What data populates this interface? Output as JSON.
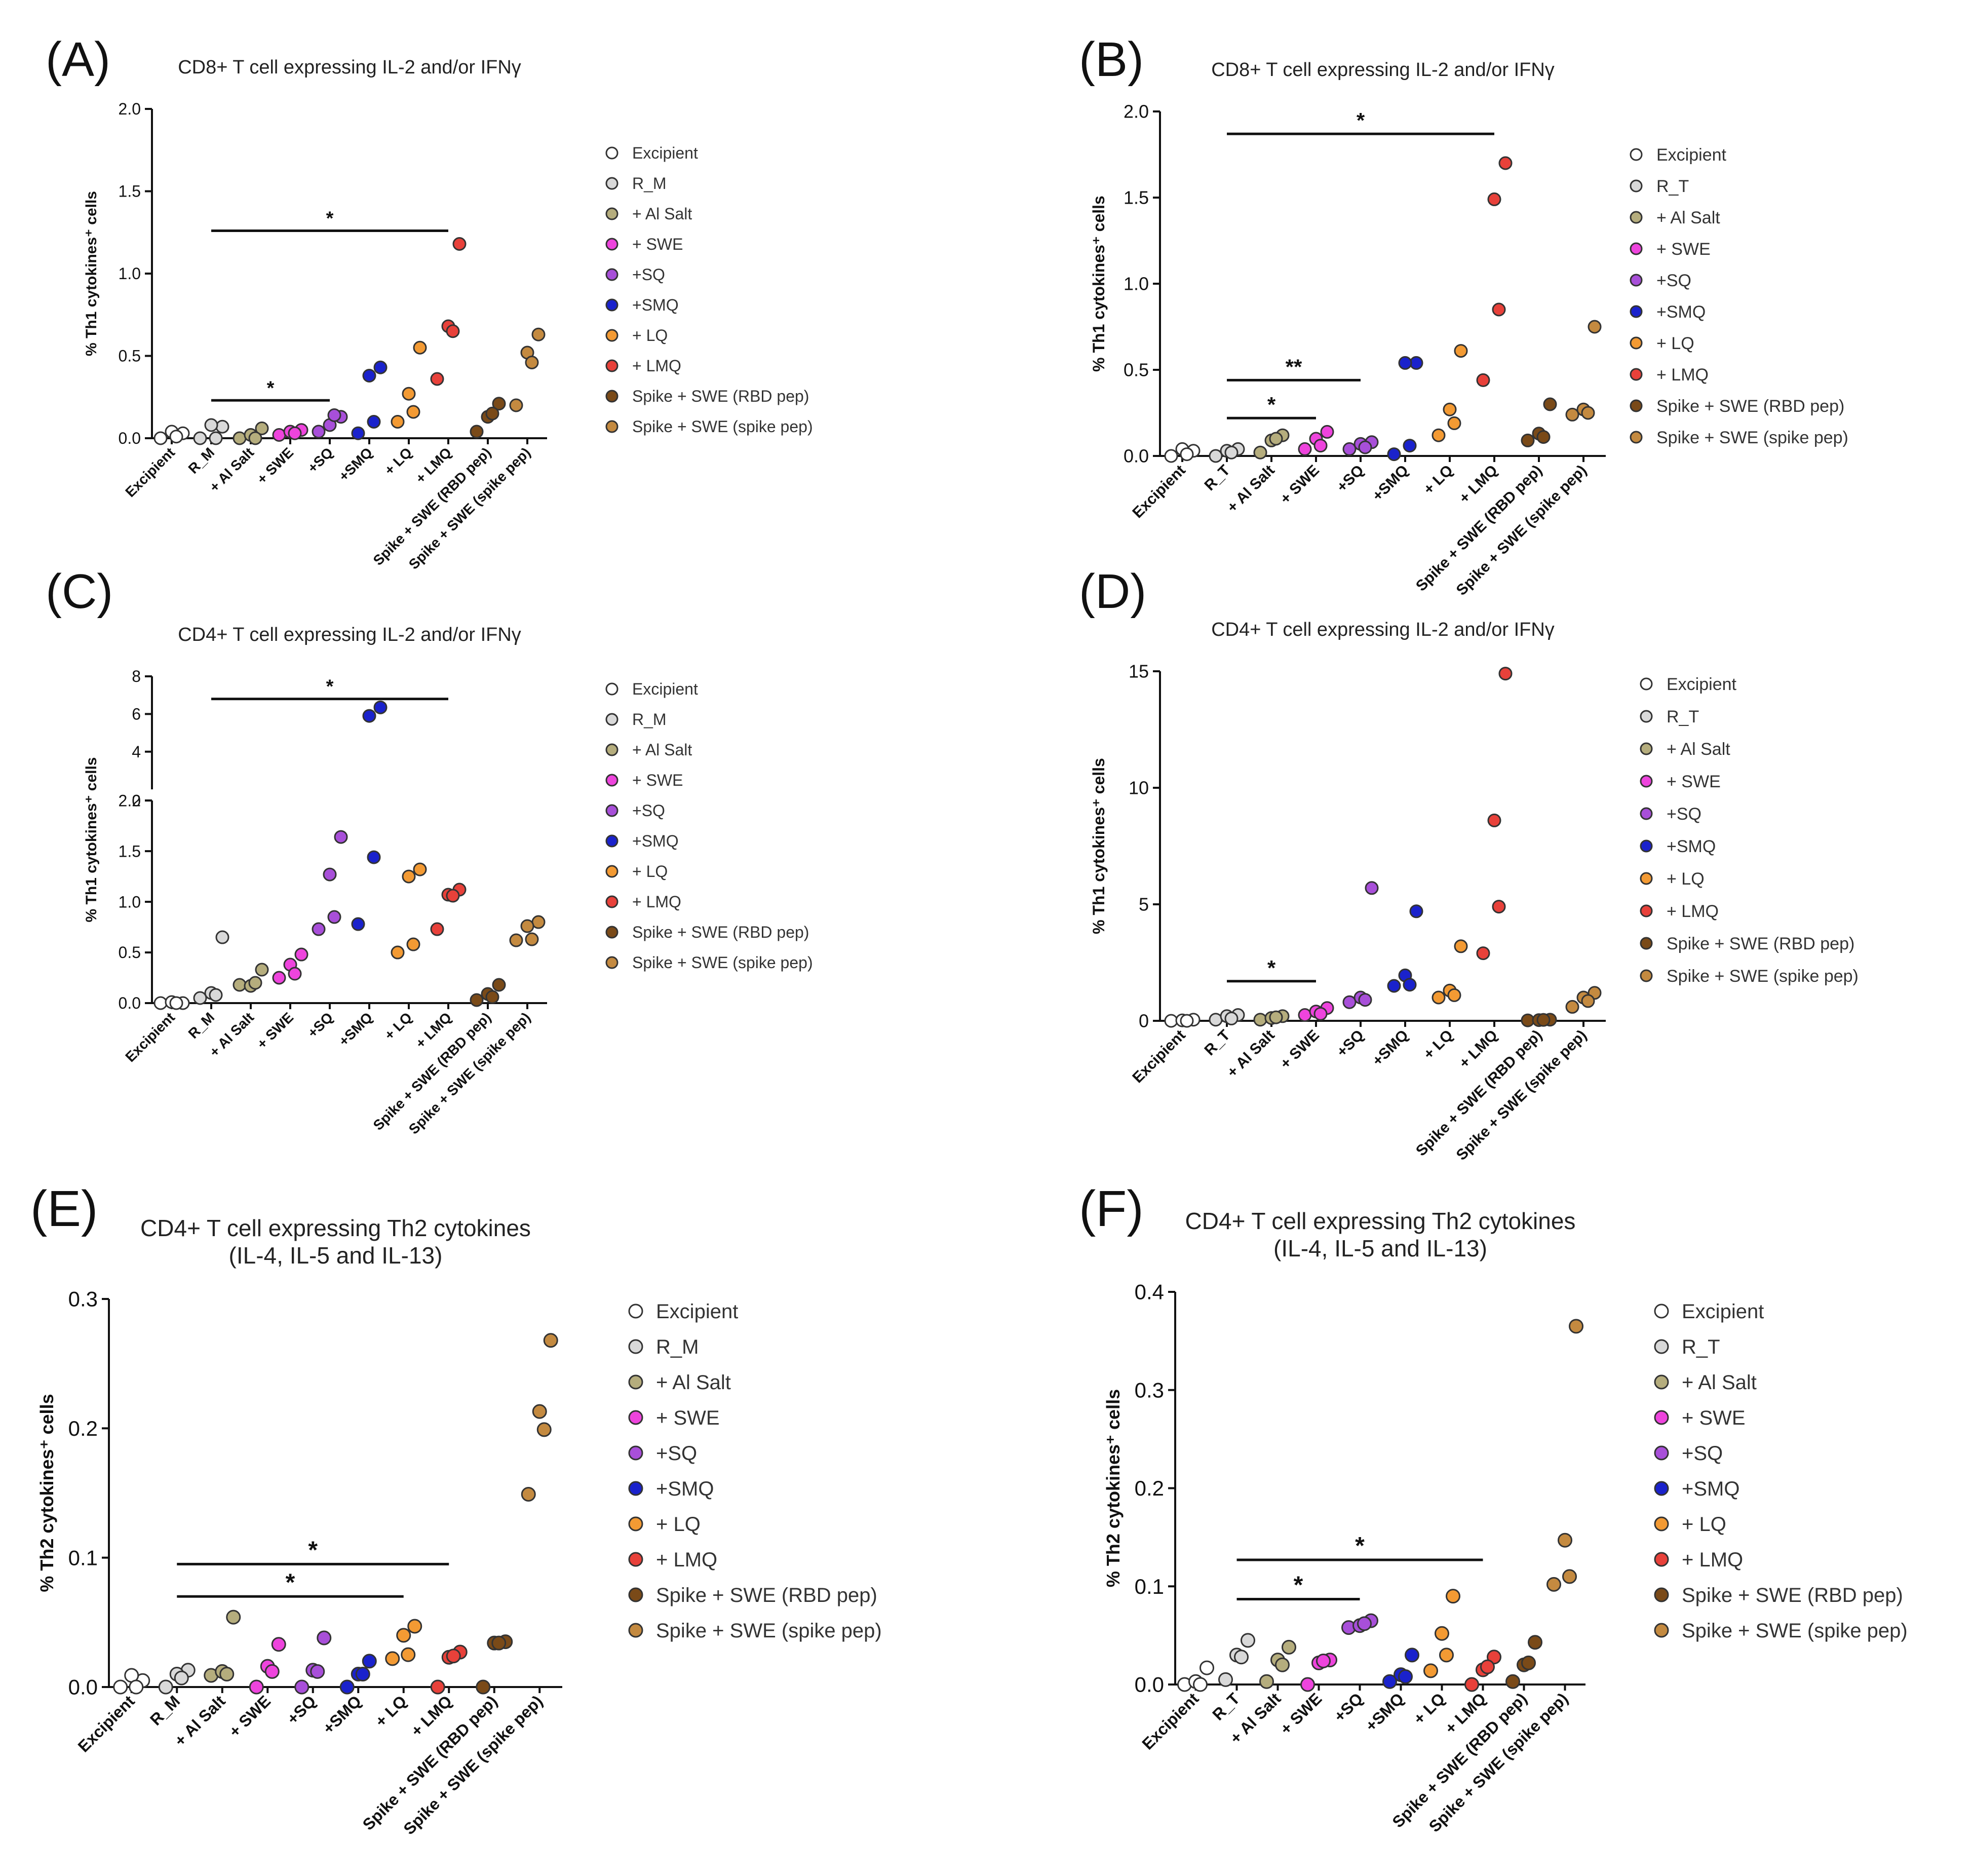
{
  "figure": {
    "legend_colors": {
      "Excipient": "#ffffff",
      "R": "#d9d9d9",
      "Al Salt": "#b5ad7d",
      "SWE": "#ee44dd",
      "SQ": "#a84fd9",
      "SMQ": "#1a22cc",
      "LQ": "#f39a33",
      "LMQ": "#e8413a",
      "RBD pep": "#7a4a18",
      "spike pep": "#c48a40"
    }
  },
  "chart_data": [
    {
      "panel": "(A)",
      "type": "scatter",
      "title": [
        "CD8+ T cell expressing IL-2 and/or IFNγ"
      ],
      "ylabel": "% Th1 cytokines⁺ cells",
      "ylim": [
        0,
        2.0
      ],
      "yticks": [
        "0.0",
        "0.5",
        "1.0",
        "1.5",
        "2.0"
      ],
      "categories": [
        "Excipient",
        "R_M",
        "+ Al Salt",
        "+ SWE",
        "+SQ",
        "+SMQ",
        "+ LQ",
        "+ LMQ",
        "Spike + SWE (RBD pep)",
        "Spike + SWE (spike pep)"
      ],
      "legend": [
        "Excipient",
        "R_M",
        "+ Al Salt",
        "+ SWE",
        "+SQ",
        "+SMQ",
        "+ LQ",
        "+ LMQ",
        "Spike + SWE (RBD pep)",
        "Spike + SWE (spike pep)"
      ],
      "colors": [
        "#ffffff",
        "#d9d9d9",
        "#b5ad7d",
        "#ee44dd",
        "#a84fd9",
        "#1a22cc",
        "#f39a33",
        "#e8413a",
        "#7a4a18",
        "#c48a40"
      ],
      "values": [
        [
          0.0,
          0.03,
          0.04,
          0.01
        ],
        [
          0.0,
          0.07,
          0.08,
          0.0
        ],
        [
          0.0,
          0.06,
          0.02,
          0.0
        ],
        [
          0.02,
          0.05,
          0.04,
          0.03
        ],
        [
          0.04,
          0.13,
          0.08,
          0.14
        ],
        [
          0.03,
          0.43,
          0.38,
          0.1
        ],
        [
          0.1,
          0.55,
          0.27,
          0.16
        ],
        [
          0.36,
          1.18,
          0.68,
          0.65
        ],
        [
          0.04,
          0.21,
          0.13,
          0.15
        ],
        [
          0.2,
          0.63,
          0.52,
          0.46
        ]
      ],
      "significance": [
        {
          "from": 1,
          "to": 7,
          "y": 1.26,
          "label": "*"
        },
        {
          "from": 1,
          "to": 4,
          "y": 0.23,
          "label": "*"
        }
      ]
    },
    {
      "panel": "(B)",
      "type": "scatter",
      "title": [
        "CD8+ T cell expressing IL-2 and/or IFNγ"
      ],
      "ylabel": "% Th1 cytokines⁺ cells",
      "ylim": [
        0,
        2.0
      ],
      "yticks": [
        "0.0",
        "0.5",
        "1.0",
        "1.5",
        "2.0"
      ],
      "categories": [
        "Excipient",
        "R_T",
        "+ Al Salt",
        "+ SWE",
        "+SQ",
        "+SMQ",
        "+ LQ",
        "+ LMQ",
        "Spike + SWE (RBD pep)",
        "Spike + SWE (spike pep)"
      ],
      "legend": [
        "Excipient",
        "R_T",
        "+ Al Salt",
        "+ SWE",
        "+SQ",
        "+SMQ",
        "+ LQ",
        "+ LMQ",
        "Spike + SWE (RBD pep)",
        "Spike + SWE (spike pep)"
      ],
      "colors": [
        "#ffffff",
        "#d9d9d9",
        "#b5ad7d",
        "#ee44dd",
        "#a84fd9",
        "#1a22cc",
        "#f39a33",
        "#e8413a",
        "#7a4a18",
        "#c48a40"
      ],
      "values": [
        [
          0.0,
          0.03,
          0.04,
          0.01
        ],
        [
          0.0,
          0.04,
          0.03,
          0.02
        ],
        [
          0.02,
          0.12,
          0.09,
          0.1
        ],
        [
          0.04,
          0.14,
          0.1,
          0.06
        ],
        [
          0.04,
          0.08,
          0.07,
          0.05
        ],
        [
          0.01,
          0.54,
          0.54,
          0.06
        ],
        [
          0.12,
          0.61,
          0.27,
          0.19
        ],
        [
          0.44,
          1.7,
          1.49,
          0.85
        ],
        [
          0.09,
          0.3,
          0.13,
          0.11
        ],
        [
          0.24,
          0.75,
          0.27,
          0.25
        ]
      ],
      "significance": [
        {
          "from": 1,
          "to": 7,
          "y": 1.87,
          "label": "*"
        },
        {
          "from": 1,
          "to": 4,
          "y": 0.44,
          "label": "**"
        },
        {
          "from": 1,
          "to": 3,
          "y": 0.22,
          "label": "*"
        }
      ]
    },
    {
      "panel": "(C)",
      "type": "scatter",
      "title": [
        "CD4+ T cell expressing IL-2 and/or IFNγ"
      ],
      "ylabel": "% Th1 cytokines⁺ cells",
      "ylim": [
        0,
        8
      ],
      "axis_break": {
        "lower": [
          0,
          2.0
        ],
        "upper": [
          2,
          8
        ]
      },
      "yticks": [
        "0.0",
        "0.5",
        "1.0",
        "1.5",
        "2.0"
      ],
      "yticks_upper": [
        "2",
        "4",
        "6",
        "8"
      ],
      "categories": [
        "Excipient",
        "R_M",
        "+ Al Salt",
        "+ SWE",
        "+SQ",
        "+SMQ",
        "+ LQ",
        "+ LMQ",
        "Spike + SWE (RBD pep)",
        "Spike + SWE (spike pep)"
      ],
      "legend": [
        "Excipient",
        "R_M",
        "+ Al Salt",
        "+ SWE",
        "+SQ",
        "+SMQ",
        "+ LQ",
        "+ LMQ",
        "Spike + SWE (RBD pep)",
        "Spike + SWE (spike pep)"
      ],
      "colors": [
        "#ffffff",
        "#d9d9d9",
        "#b5ad7d",
        "#ee44dd",
        "#a84fd9",
        "#1a22cc",
        "#f39a33",
        "#e8413a",
        "#7a4a18",
        "#c48a40"
      ],
      "values": [
        [
          0.0,
          0.0,
          0.01,
          0.0
        ],
        [
          0.05,
          0.65,
          0.1,
          0.08
        ],
        [
          0.18,
          0.33,
          0.17,
          0.2
        ],
        [
          0.25,
          0.48,
          0.38,
          0.29
        ],
        [
          0.73,
          1.64,
          1.27,
          0.85
        ],
        [
          0.78,
          6.35,
          5.9,
          1.44
        ],
        [
          0.5,
          1.32,
          1.25,
          0.58
        ],
        [
          0.73,
          1.12,
          1.07,
          1.06
        ],
        [
          0.03,
          0.18,
          0.09,
          0.06
        ],
        [
          0.62,
          0.8,
          0.76,
          0.63
        ]
      ],
      "significance": [
        {
          "from": 1,
          "to": 7,
          "y": 6.8,
          "label": "*"
        }
      ]
    },
    {
      "panel": "(D)",
      "type": "scatter",
      "title": [
        "CD4+ T cell expressing IL-2 and/or IFNγ"
      ],
      "ylabel": "% Th1 cytokines⁺ cells",
      "ylim": [
        0,
        15
      ],
      "yticks": [
        "0",
        "5",
        "10",
        "15"
      ],
      "categories": [
        "Excipient",
        "R_T",
        "+ Al Salt",
        "+ SWE",
        "+SQ",
        "+SMQ",
        "+ LQ",
        "+ LMQ",
        "Spike + SWE (RBD pep)",
        "Spike + SWE (spike pep)"
      ],
      "legend": [
        "Excipient",
        "R_T",
        "+ Al Salt",
        "+ SWE",
        "+SQ",
        "+SMQ",
        "+ LQ",
        "+ LMQ",
        "Spike + SWE (RBD pep)",
        "Spike + SWE (spike pep)"
      ],
      "colors": [
        "#ffffff",
        "#d9d9d9",
        "#b5ad7d",
        "#ee44dd",
        "#a84fd9",
        "#1a22cc",
        "#f39a33",
        "#e8413a",
        "#7a4a18",
        "#c48a40"
      ],
      "values": [
        [
          0.0,
          0.05,
          0.02,
          0.0
        ],
        [
          0.05,
          0.25,
          0.2,
          0.1
        ],
        [
          0.05,
          0.2,
          0.12,
          0.15
        ],
        [
          0.25,
          0.55,
          0.4,
          0.3
        ],
        [
          0.8,
          5.7,
          1.0,
          0.9
        ],
        [
          1.5,
          4.7,
          1.95,
          1.55
        ],
        [
          1.0,
          3.2,
          1.3,
          1.1
        ],
        [
          2.9,
          14.9,
          8.6,
          4.9
        ],
        [
          0.02,
          0.05,
          0.03,
          0.04
        ],
        [
          0.6,
          1.2,
          1.0,
          0.85
        ]
      ],
      "significance": [
        {
          "from": 1,
          "to": 3,
          "y": 1.7,
          "label": "*"
        }
      ]
    },
    {
      "panel": "(E)",
      "type": "scatter",
      "title": [
        "CD4+ T cell expressing Th2 cytokines",
        "(IL-4, IL-5 and IL-13)"
      ],
      "ylabel": "% Th2 cytokines⁺ cells",
      "ylim": [
        0,
        0.3
      ],
      "yticks": [
        "0.0",
        "0.1",
        "0.2",
        "0.3"
      ],
      "categories": [
        "Excipient",
        "R_M",
        "+ Al Salt",
        "+ SWE",
        "+SQ",
        "+SMQ",
        "+ LQ",
        "+ LMQ",
        "Spike + SWE (RBD pep)",
        "Spike + SWE (spike pep)"
      ],
      "legend": [
        "Excipient",
        "R_M",
        "+ Al Salt",
        "+ SWE",
        "+SQ",
        "+SMQ",
        "+ LQ",
        "+ LMQ",
        "Spike + SWE (RBD pep)",
        "Spike + SWE (spike pep)"
      ],
      "colors": [
        "#ffffff",
        "#d9d9d9",
        "#b5ad7d",
        "#ee44dd",
        "#a84fd9",
        "#1a22cc",
        "#f39a33",
        "#e8413a",
        "#7a4a18",
        "#c48a40"
      ],
      "values": [
        [
          0.0,
          0.005,
          0.009,
          0.0
        ],
        [
          0.0,
          0.013,
          0.01,
          0.007
        ],
        [
          0.009,
          0.054,
          0.012,
          0.01
        ],
        [
          0.0,
          0.033,
          0.016,
          0.012
        ],
        [
          0.0,
          0.038,
          0.013,
          0.012
        ],
        [
          0.0,
          0.02,
          0.01,
          0.01
        ],
        [
          0.022,
          0.047,
          0.04,
          0.025
        ],
        [
          0.0,
          0.027,
          0.023,
          0.024
        ],
        [
          0.0,
          0.035,
          0.034,
          0.034
        ],
        [
          0.149,
          0.268,
          0.213,
          0.199
        ]
      ],
      "significance": [
        {
          "from": 1,
          "to": 7,
          "y": 0.095,
          "label": "*"
        },
        {
          "from": 1,
          "to": 6,
          "y": 0.07,
          "label": "*"
        }
      ]
    },
    {
      "panel": "(F)",
      "type": "scatter",
      "title": [
        "CD4+ T cell expressing Th2 cytokines",
        "(IL-4, IL-5 and IL-13)"
      ],
      "ylabel": "% Th2 cytokines⁺ cells",
      "ylim": [
        0,
        0.4
      ],
      "yticks": [
        "0.0",
        "0.1",
        "0.2",
        "0.3",
        "0.4"
      ],
      "categories": [
        "Excipient",
        "R_T",
        "+ Al Salt",
        "+ SWE",
        "+SQ",
        "+SMQ",
        "+ LQ",
        "+ LMQ",
        "Spike + SWE (RBD pep)",
        "Spike + SWE (spike pep)"
      ],
      "legend": [
        "Excipient",
        "R_T",
        "+ Al Salt",
        "+ SWE",
        "+SQ",
        "+SMQ",
        "+ LQ",
        "+ LMQ",
        "Spike + SWE (RBD pep)",
        "Spike + SWE (spike pep)"
      ],
      "colors": [
        "#ffffff",
        "#d9d9d9",
        "#b5ad7d",
        "#ee44dd",
        "#a84fd9",
        "#1a22cc",
        "#f39a33",
        "#e8413a",
        "#7a4a18",
        "#c48a40"
      ],
      "values": [
        [
          0.0,
          0.017,
          0.003,
          0.0
        ],
        [
          0.005,
          0.045,
          0.03,
          0.028
        ],
        [
          0.003,
          0.038,
          0.025,
          0.02
        ],
        [
          0.0,
          0.025,
          0.022,
          0.024
        ],
        [
          0.058,
          0.065,
          0.06,
          0.062
        ],
        [
          0.003,
          0.03,
          0.01,
          0.008
        ],
        [
          0.014,
          0.09,
          0.052,
          0.03
        ],
        [
          0.0,
          0.028,
          0.015,
          0.018
        ],
        [
          0.003,
          0.043,
          0.02,
          0.022
        ],
        [
          0.102,
          0.365,
          0.147,
          0.11
        ]
      ],
      "significance": [
        {
          "from": 1,
          "to": 7,
          "y": 0.127,
          "label": "*"
        },
        {
          "from": 1,
          "to": 4,
          "y": 0.087,
          "label": "*"
        }
      ]
    }
  ]
}
